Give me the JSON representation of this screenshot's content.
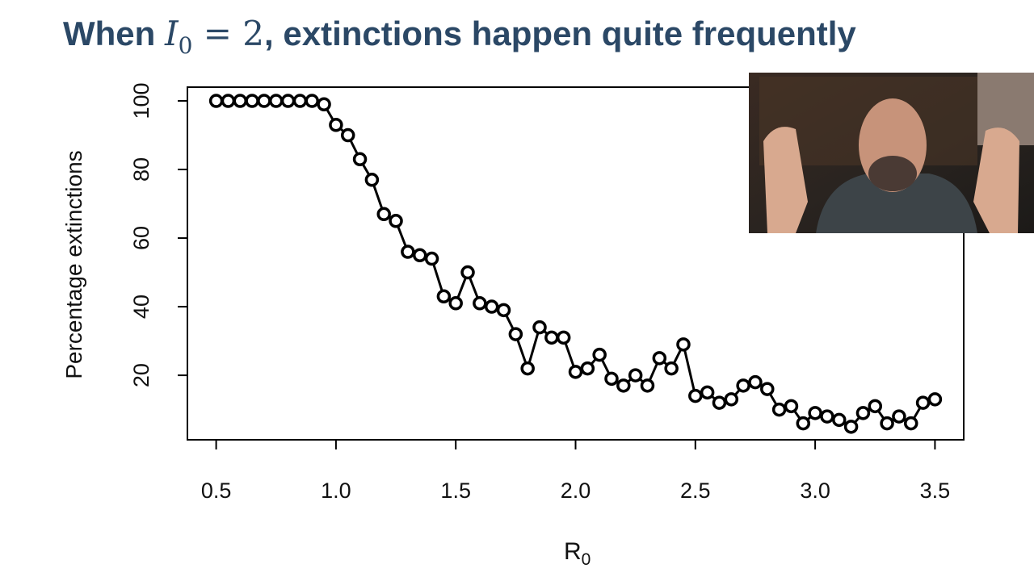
{
  "chart_data": {
    "type": "scatter-line",
    "title": {
      "start": "When ",
      "symbol": "I",
      "subscript": "0",
      "math_rest": " = 2",
      "end": ", extinctions happen quite frequently"
    },
    "xlabel": {
      "main": "R",
      "subscript": "0"
    },
    "ylabel": "Percentage extinctions",
    "x": [
      0.5,
      0.55,
      0.6,
      0.65,
      0.7,
      0.75,
      0.8,
      0.85,
      0.9,
      0.95,
      1.0,
      1.05,
      1.1,
      1.15,
      1.2,
      1.25,
      1.3,
      1.35,
      1.4,
      1.45,
      1.5,
      1.55,
      1.6,
      1.65,
      1.7,
      1.75,
      1.8,
      1.85,
      1.9,
      1.95,
      2.0,
      2.05,
      2.1,
      2.15,
      2.2,
      2.25,
      2.3,
      2.35,
      2.4,
      2.45,
      2.5,
      2.55,
      2.6,
      2.65,
      2.7,
      2.75,
      2.8,
      2.85,
      2.9,
      2.95,
      3.0,
      3.05,
      3.1,
      3.15,
      3.2,
      3.25,
      3.3,
      3.35,
      3.4,
      3.45,
      3.5
    ],
    "values": [
      100,
      100,
      100,
      100,
      100,
      100,
      100,
      100,
      100,
      99,
      93,
      90,
      83,
      77,
      67,
      65,
      56,
      55,
      54,
      43,
      41,
      50,
      41,
      40,
      39,
      32,
      22,
      34,
      31,
      31,
      21,
      22,
      26,
      19,
      17,
      20,
      17,
      25,
      22,
      29,
      14,
      15,
      12,
      13,
      17,
      18,
      16,
      10,
      11,
      6,
      9,
      8,
      7,
      5,
      9,
      11,
      6,
      8,
      6,
      12,
      13
    ],
    "color": "#000000",
    "xlim": [
      0.38,
      3.62
    ],
    "ylim": [
      1.2,
      104
    ],
    "xticks": [
      0.5,
      {
        "value": 1.0,
        "label": "1.0"
      },
      1.5,
      {
        "value": 2.0,
        "label": "2.0"
      },
      2.5,
      {
        "value": 3.0,
        "label": "3.0"
      },
      3.5
    ],
    "yticks": [
      20,
      40,
      60,
      80,
      100
    ]
  }
}
